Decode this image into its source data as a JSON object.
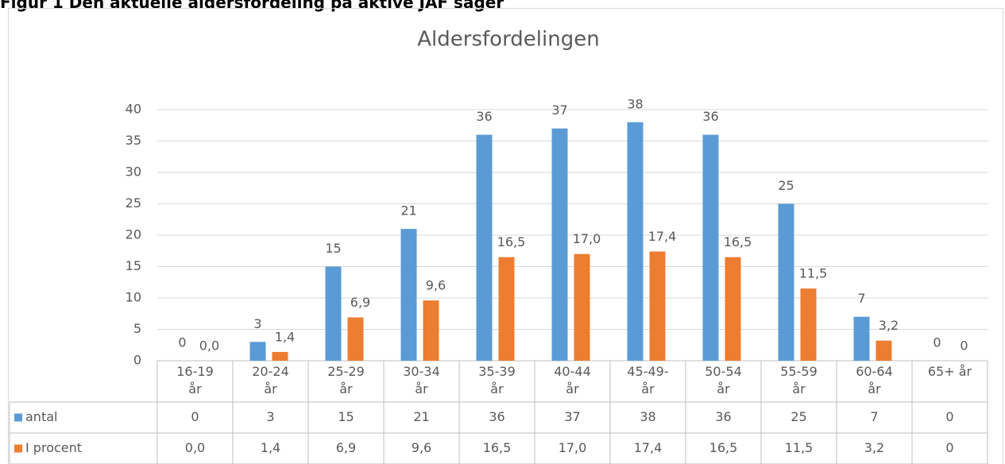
{
  "caption": "Figur 1 Den aktuelle aldersfordeling på aktive JAF sager",
  "chart_data": {
    "type": "bar",
    "title": "Aldersfordelingen",
    "categories": [
      "16-19 år",
      "20-24 år",
      "25-29 år",
      "30-34 år",
      "35-39 år",
      "40-44 år",
      "45-49-år",
      "50-54 år",
      "55-59 år",
      "60-64 år",
      "65+ år"
    ],
    "series": [
      {
        "name": "antal",
        "color": "#5b9bd5",
        "values": [
          0,
          3,
          15,
          21,
          36,
          37,
          38,
          36,
          25,
          7,
          0
        ]
      },
      {
        "name": "I procent",
        "color": "#ed7d31",
        "values": [
          0,
          1.4,
          6.9,
          9.6,
          16.5,
          17.0,
          17.4,
          16.5,
          11.5,
          3.2,
          0
        ],
        "value_labels": [
          "0,0",
          "1,4",
          "6,9",
          "9,6",
          "16,5",
          "17,0",
          "17,4",
          "16,5",
          "11,5",
          "3,2",
          "0"
        ]
      }
    ],
    "ylim": [
      0,
      40
    ],
    "yticks": [
      0,
      5,
      10,
      15,
      20,
      25,
      30,
      35,
      40
    ],
    "grid": true
  }
}
